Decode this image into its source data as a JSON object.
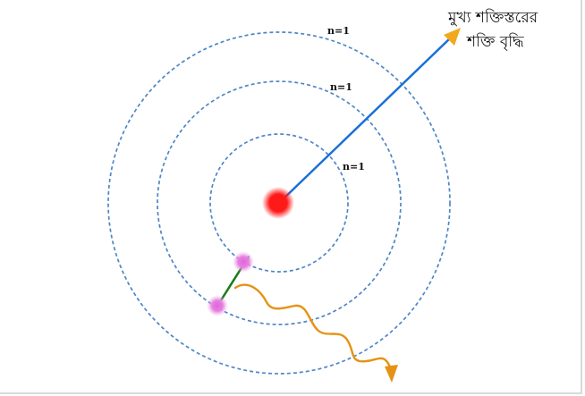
{
  "diagram": {
    "orbit_labels": [
      "n=1",
      "n=1",
      "n=1"
    ],
    "arrow_caption_line1": "মুখ্য শক্তিস্তরের",
    "arrow_caption_line2": "শক্তি বৃদ্ধি"
  },
  "colors": {
    "orbit": "#4f86c6",
    "nucleus": "#ff1a1a",
    "electron": "#e066d8",
    "energy_arrow": "#1a6fd8",
    "energy_arrowhead": "#f0a91c",
    "transition_arrow": "#1a7a1a",
    "photon_wave": "#e69214"
  },
  "icons": {
    "nucleus": "red-dot",
    "electron": "pink-dot",
    "photon": "wavy-arrow"
  }
}
